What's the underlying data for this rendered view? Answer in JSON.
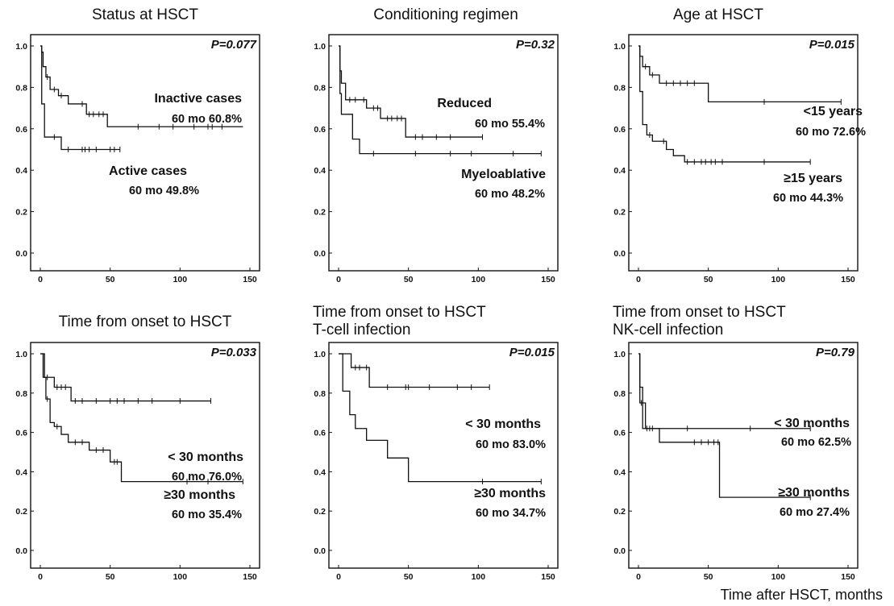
{
  "x_axis_caption": "Time after HSCT, months",
  "chart_data": [
    {
      "type": "line",
      "step": true,
      "title": [
        "Status at HSCT"
      ],
      "pvalue": "P=0.077",
      "xlim": [
        0,
        150
      ],
      "ylim": [
        0,
        1.0
      ],
      "x_ticks": [
        0,
        50,
        100,
        150
      ],
      "y_ticks": [
        0.0,
        0.2,
        0.4,
        0.6,
        0.8,
        1.0
      ],
      "x_tick_labels": [
        "0",
        "50",
        "100",
        "150"
      ],
      "y_tick_labels": [
        "0.0",
        "0.2",
        "0.4",
        "0.6",
        "0.8",
        "1.0"
      ],
      "series": [
        {
          "label_lines": [
            "Inactive cases",
            "60 mo 60.8%"
          ],
          "steps": [
            [
              0,
              1.0
            ],
            [
              1,
              0.97
            ],
            [
              2,
              0.9
            ],
            [
              4,
              0.85
            ],
            [
              7,
              0.79
            ],
            [
              13,
              0.76
            ],
            [
              20,
              0.72
            ],
            [
              33,
              0.67
            ],
            [
              48,
              0.61
            ],
            [
              145,
              0.61
            ]
          ],
          "censored": [
            5,
            10,
            15,
            30,
            35,
            38,
            42,
            45,
            70,
            85,
            95,
            110,
            120,
            123,
            130
          ]
        },
        {
          "label_lines": [
            "Active cases",
            "60 mo 49.8%"
          ],
          "steps": [
            [
              0,
              1.0
            ],
            [
              1,
              0.72
            ],
            [
              3,
              0.56
            ],
            [
              15,
              0.5
            ],
            [
              57,
              0.5
            ]
          ],
          "censored": [
            10,
            20,
            30,
            32,
            35,
            40,
            50,
            53,
            57
          ]
        }
      ]
    },
    {
      "type": "line",
      "step": true,
      "title": [
        "Conditioning regimen"
      ],
      "pvalue": "P=0.32",
      "xlim": [
        0,
        150
      ],
      "ylim": [
        0,
        1.0
      ],
      "x_ticks": [
        0,
        50,
        100,
        150
      ],
      "y_ticks": [
        0.0,
        0.2,
        0.4,
        0.6,
        0.8,
        1.0
      ],
      "x_tick_labels": [
        "0",
        "50",
        "100",
        "150"
      ],
      "y_tick_labels": [
        "0.0",
        "0.2",
        "0.4",
        "0.6",
        "0.8",
        "1.0"
      ],
      "series": [
        {
          "label_lines": [
            "Reduced",
            "60 mo 55.4%"
          ],
          "steps": [
            [
              0,
              1.0
            ],
            [
              1,
              0.88
            ],
            [
              2,
              0.82
            ],
            [
              5,
              0.74
            ],
            [
              20,
              0.7
            ],
            [
              30,
              0.65
            ],
            [
              48,
              0.56
            ],
            [
              103,
              0.56
            ]
          ],
          "censored": [
            8,
            12,
            18,
            25,
            28,
            35,
            38,
            42,
            45,
            55,
            60,
            70,
            80,
            103
          ]
        },
        {
          "label_lines": [
            "Myeloablative",
            "60 mo 48.2%"
          ],
          "steps": [
            [
              0,
              1.0
            ],
            [
              1,
              0.77
            ],
            [
              2,
              0.67
            ],
            [
              10,
              0.55
            ],
            [
              15,
              0.48
            ],
            [
              145,
              0.48
            ]
          ],
          "censored": [
            25,
            55,
            80,
            95,
            125,
            145
          ]
        }
      ]
    },
    {
      "type": "line",
      "step": true,
      "title": [
        "Age at HSCT"
      ],
      "pvalue": "P=0.015",
      "xlim": [
        0,
        150
      ],
      "ylim": [
        0,
        1.0
      ],
      "x_ticks": [
        0,
        50,
        100,
        150
      ],
      "y_ticks": [
        0.0,
        0.2,
        0.4,
        0.6,
        0.8,
        1.0
      ],
      "x_tick_labels": [
        "0",
        "50",
        "100",
        "150"
      ],
      "y_tick_labels": [
        "0.0",
        "0.2",
        "0.4",
        "0.6",
        "0.8",
        "1.0"
      ],
      "series": [
        {
          "label_lines": [
            "<15 years",
            "60 mo 72.6%"
          ],
          "steps": [
            [
              0,
              1.0
            ],
            [
              1,
              0.95
            ],
            [
              3,
              0.9
            ],
            [
              8,
              0.86
            ],
            [
              15,
              0.82
            ],
            [
              50,
              0.73
            ],
            [
              145,
              0.73
            ]
          ],
          "censored": [
            5,
            10,
            20,
            25,
            30,
            35,
            40,
            90,
            145
          ]
        },
        {
          "label_lines": [
            "≥15 years",
            "60 mo 44.3%"
          ],
          "steps": [
            [
              0,
              1.0
            ],
            [
              1,
              0.78
            ],
            [
              3,
              0.62
            ],
            [
              6,
              0.57
            ],
            [
              10,
              0.54
            ],
            [
              20,
              0.5
            ],
            [
              25,
              0.47
            ],
            [
              33,
              0.44
            ],
            [
              123,
              0.44
            ]
          ],
          "censored": [
            8,
            18,
            35,
            40,
            45,
            48,
            52,
            55,
            60,
            90,
            123
          ]
        }
      ]
    },
    {
      "type": "line",
      "step": true,
      "title": [
        "Time from onset to HSCT"
      ],
      "pvalue": "P=0.033",
      "xlim": [
        0,
        150
      ],
      "ylim": [
        0,
        1.0
      ],
      "x_ticks": [
        0,
        50,
        100,
        150
      ],
      "y_ticks": [
        0.0,
        0.2,
        0.4,
        0.6,
        0.8,
        1.0
      ],
      "x_tick_labels": [
        "0",
        "50",
        "100",
        "150"
      ],
      "y_tick_labels": [
        "0.0",
        "0.2",
        "0.4",
        "0.6",
        "0.8",
        "1.0"
      ],
      "series": [
        {
          "label_lines": [
            "< 30 months",
            "60 mo 76.0%"
          ],
          "steps": [
            [
              0,
              1.0
            ],
            [
              3,
              0.88
            ],
            [
              10,
              0.83
            ],
            [
              22,
              0.76
            ],
            [
              122,
              0.76
            ]
          ],
          "censored": [
            5,
            12,
            15,
            18,
            25,
            30,
            40,
            50,
            55,
            60,
            70,
            80,
            100,
            122
          ]
        },
        {
          "label_lines": [
            "≥30 months",
            "60 mo 35.4%"
          ],
          "steps": [
            [
              0,
              1.0
            ],
            [
              2,
              0.88
            ],
            [
              4,
              0.77
            ],
            [
              7,
              0.65
            ],
            [
              10,
              0.63
            ],
            [
              15,
              0.59
            ],
            [
              20,
              0.55
            ],
            [
              35,
              0.51
            ],
            [
              50,
              0.45
            ],
            [
              58,
              0.35
            ],
            [
              145,
              0.35
            ]
          ],
          "censored": [
            5,
            12,
            25,
            30,
            40,
            45,
            53,
            55,
            105,
            120,
            145
          ]
        }
      ]
    },
    {
      "type": "line",
      "step": true,
      "title": [
        "Time from onset to HSCT",
        "T-cell infection"
      ],
      "pvalue": "P=0.015",
      "xlim": [
        0,
        150
      ],
      "ylim": [
        0,
        1.0
      ],
      "x_ticks": [
        0,
        50,
        100,
        150
      ],
      "y_ticks": [
        0.0,
        0.2,
        0.4,
        0.6,
        0.8,
        1.0
      ],
      "x_tick_labels": [
        "0",
        "50",
        "100",
        "150"
      ],
      "y_tick_labels": [
        "0.0",
        "0.2",
        "0.4",
        "0.6",
        "0.8",
        "1.0"
      ],
      "series": [
        {
          "label_lines": [
            "< 30 months",
            "60 mo 83.0%"
          ],
          "steps": [
            [
              0,
              1.0
            ],
            [
              9,
              0.93
            ],
            [
              22,
              0.83
            ],
            [
              108,
              0.83
            ]
          ],
          "censored": [
            12,
            15,
            20,
            35,
            48,
            50,
            65,
            85,
            95,
            108
          ]
        },
        {
          "label_lines": [
            "≥30 months",
            "60 mo 34.7%"
          ],
          "steps": [
            [
              0,
              1.0
            ],
            [
              3,
              0.81
            ],
            [
              8,
              0.69
            ],
            [
              12,
              0.62
            ],
            [
              20,
              0.56
            ],
            [
              35,
              0.47
            ],
            [
              50,
              0.35
            ],
            [
              145,
              0.35
            ]
          ],
          "censored": [
            103,
            145
          ]
        }
      ]
    },
    {
      "type": "line",
      "step": true,
      "title": [
        "Time from onset to HSCT",
        "NK-cell infection"
      ],
      "pvalue": "P=0.79",
      "xlim": [
        0,
        150
      ],
      "ylim": [
        0,
        1.0
      ],
      "x_ticks": [
        0,
        50,
        100,
        150
      ],
      "y_ticks": [
        0.0,
        0.2,
        0.4,
        0.6,
        0.8,
        1.0
      ],
      "x_tick_labels": [
        "0",
        "50",
        "100",
        "150"
      ],
      "y_tick_labels": [
        "0.0",
        "0.2",
        "0.4",
        "0.6",
        "0.8",
        "1.0"
      ],
      "series": [
        {
          "label_lines": [
            "< 30 months",
            "60 mo 62.5%"
          ],
          "steps": [
            [
              0,
              1.0
            ],
            [
              1,
              0.83
            ],
            [
              3,
              0.62
            ],
            [
              123,
              0.62
            ]
          ],
          "censored": [
            6,
            10,
            35,
            80,
            123
          ]
        },
        {
          "label_lines": [
            "≥30 months",
            "60 mo 27.4%"
          ],
          "steps": [
            [
              0,
              1.0
            ],
            [
              1,
              0.75
            ],
            [
              5,
              0.62
            ],
            [
              15,
              0.55
            ],
            [
              58,
              0.27
            ],
            [
              123,
              0.27
            ]
          ],
          "censored": [
            2,
            3,
            8,
            40,
            45,
            50,
            54,
            57,
            123
          ]
        }
      ]
    }
  ]
}
